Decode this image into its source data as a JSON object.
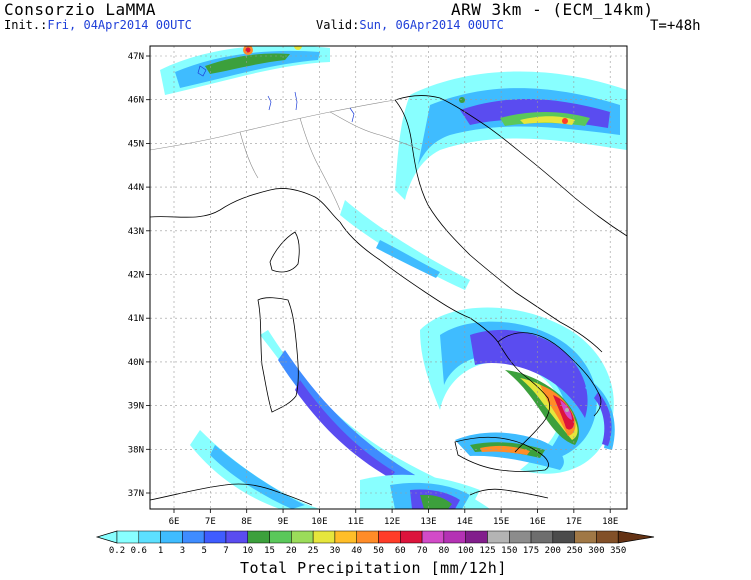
{
  "header": {
    "source": "Consorzio LaMMA",
    "model": "ARW 3km - (ECM_14km)",
    "init_label": "Init.:",
    "init_value": "Fri, 04Apr2014 00UTC",
    "valid_label": "Valid:",
    "valid_value": "Sun, 06Apr2014 00UTC",
    "lead_time": "T=+48h"
  },
  "map": {
    "lat_labels": [
      "47N",
      "46N",
      "45N",
      "44N",
      "43N",
      "42N",
      "41N",
      "40N",
      "39N",
      "38N",
      "37N"
    ],
    "lon_labels": [
      "6E",
      "7E",
      "8E",
      "9E",
      "10E",
      "11E",
      "12E",
      "13E",
      "14E",
      "15E",
      "16E",
      "17E",
      "18E"
    ],
    "gridlines": true
  },
  "colorbar": {
    "title": "Total Precipitation [mm/12h]",
    "levels": [
      "0.2",
      "0.6",
      "1",
      "3",
      "5",
      "7",
      "10",
      "15",
      "20",
      "25",
      "30",
      "40",
      "50",
      "60",
      "70",
      "80",
      "100",
      "125",
      "150",
      "175",
      "200",
      "250",
      "300",
      "350"
    ],
    "colors": [
      "#88ffff",
      "#5ce0ff",
      "#3fbcff",
      "#3f8cff",
      "#3f5cff",
      "#5a4cf0",
      "#3ca03c",
      "#5ac85a",
      "#9bdc5a",
      "#e6e63c",
      "#ffbe28",
      "#ff8c28",
      "#ff3c28",
      "#dc143c",
      "#d24bc8",
      "#b432b4",
      "#821e8c",
      "#b4b4b4",
      "#8c8c8c",
      "#6e6e6e",
      "#4b4b4b",
      "#a07846",
      "#825028",
      "#643214"
    ]
  }
}
